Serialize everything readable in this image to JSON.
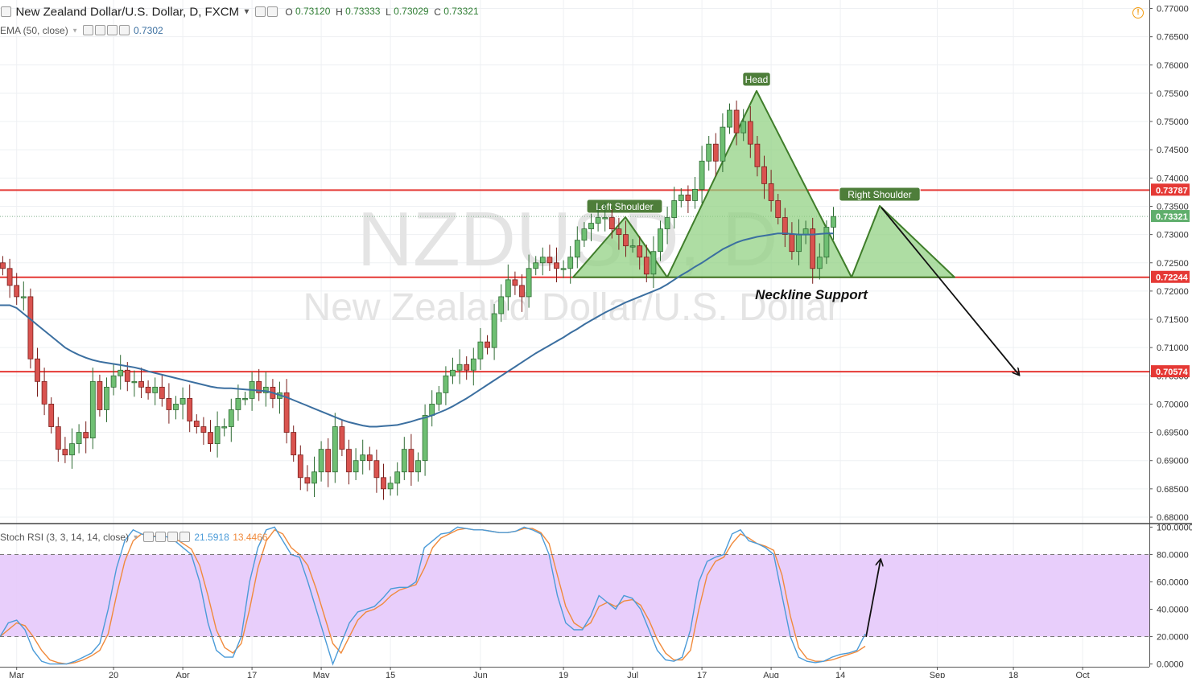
{
  "header": {
    "title": "New Zealand Dollar/U.S. Dollar, D, FXCM",
    "ohlc": [
      {
        "k": "O",
        "v": "0.73120"
      },
      {
        "k": "H",
        "v": "0.73333"
      },
      {
        "k": "L",
        "v": "0.73029"
      },
      {
        "k": "C",
        "v": "0.73321"
      }
    ],
    "ema_label": "EMA (50, close)",
    "ema_value": "0.7302",
    "stoch_label": "Stoch RSI (3, 3, 14, 14, close)",
    "stoch_k": "21.5918",
    "stoch_d": "13.4466"
  },
  "watermark": {
    "symbol": "NZDUSD, D",
    "name": "New Zealand Dollar/U.S. Dollar"
  },
  "colors": {
    "up": "#6fbf73",
    "down": "#d9534f",
    "ema": "#3b6fa0",
    "level": "#e53935",
    "pattern_fill": "#8fd07f",
    "pattern_stroke": "#3f7d2a",
    "stoch_k": "#4b9bd8",
    "stoch_d": "#f08a3c",
    "rsi_band": "#e6c9fb"
  },
  "chart_data": {
    "type": "candlestick",
    "price_axis": {
      "ticks": [
        "0.77000",
        "0.76500",
        "0.76000",
        "0.75500",
        "0.75000",
        "0.74500",
        "0.74000",
        "0.73500",
        "0.73000",
        "0.72500",
        "0.72000",
        "0.71500",
        "0.71000",
        "0.70500",
        "0.70000",
        "0.69500",
        "0.69000",
        "0.68500",
        "0.68000"
      ],
      "ylim": [
        0.679,
        0.7715
      ]
    },
    "rsi_axis": {
      "ticks": [
        "100.0000",
        "80.0000",
        "60.0000",
        "40.0000",
        "20.0000",
        "0.0000"
      ],
      "ylim": [
        -2,
        102
      ],
      "band": [
        20,
        80
      ]
    },
    "time_axis": [
      {
        "i": 2,
        "label": "Mar"
      },
      {
        "i": 16,
        "label": "20"
      },
      {
        "i": 26,
        "label": "Apr"
      },
      {
        "i": 36,
        "label": "17"
      },
      {
        "i": 46,
        "label": "May"
      },
      {
        "i": 56,
        "label": "15"
      },
      {
        "i": 69,
        "label": "Jun"
      },
      {
        "i": 81,
        "label": "19"
      },
      {
        "i": 91,
        "label": "Jul"
      },
      {
        "i": 101,
        "label": "17"
      },
      {
        "i": 111,
        "label": "Aug"
      },
      {
        "i": 121,
        "label": "14"
      },
      {
        "i": 135,
        "label": "Sep"
      },
      {
        "i": 146,
        "label": "18"
      },
      {
        "i": 156,
        "label": "Oct"
      }
    ],
    "levels": [
      {
        "value": 0.73787,
        "label": "0.73787"
      },
      {
        "value": 0.72244,
        "label": "0.72244"
      },
      {
        "value": 0.70574,
        "label": "0.70574"
      }
    ],
    "last_price": {
      "value": 0.73321,
      "label": "0.73321"
    },
    "pattern_labels": {
      "left": "Left Shoulder",
      "head": "Head",
      "right": "Right Shoulder",
      "neckline": "Neckline Support"
    },
    "closes": [
      0.724,
      0.721,
      0.719,
      0.719,
      0.708,
      0.704,
      0.7,
      0.696,
      0.692,
      0.691,
      0.693,
      0.695,
      0.694,
      0.704,
      0.699,
      0.703,
      0.705,
      0.706,
      0.704,
      0.704,
      0.703,
      0.702,
      0.703,
      0.701,
      0.699,
      0.7,
      0.701,
      0.697,
      0.696,
      0.695,
      0.693,
      0.696,
      0.696,
      0.699,
      0.701,
      0.701,
      0.704,
      0.702,
      0.703,
      0.701,
      0.702,
      0.695,
      0.691,
      0.687,
      0.686,
      0.688,
      0.692,
      0.688,
      0.696,
      0.692,
      0.688,
      0.69,
      0.691,
      0.69,
      0.687,
      0.685,
      0.686,
      0.688,
      0.692,
      0.688,
      0.69,
      0.698,
      0.7,
      0.702,
      0.705,
      0.706,
      0.707,
      0.706,
      0.708,
      0.711,
      0.71,
      0.716,
      0.719,
      0.722,
      0.721,
      0.719,
      0.724,
      0.725,
      0.726,
      0.725,
      0.724,
      0.724,
      0.726,
      0.729,
      0.731,
      0.732,
      0.733,
      0.733,
      0.731,
      0.73,
      0.728,
      0.728,
      0.726,
      0.723,
      0.727,
      0.731,
      0.733,
      0.736,
      0.737,
      0.736,
      0.738,
      0.743,
      0.746,
      0.743,
      0.749,
      0.752,
      0.748,
      0.75,
      0.746,
      0.742,
      0.739,
      0.736,
      0.733,
      0.73,
      0.727,
      0.73,
      0.731,
      0.724,
      0.726,
      0.7313,
      0.7332
    ],
    "ema": [
      0.7175,
      0.7175,
      0.717,
      0.716,
      0.715,
      0.714,
      0.713,
      0.712,
      0.711,
      0.71,
      0.7093,
      0.7087,
      0.7082,
      0.7078,
      0.7075,
      0.7073,
      0.7071,
      0.7069,
      0.7067,
      0.7065,
      0.7062,
      0.7058,
      0.7055,
      0.7052,
      0.7049,
      0.7046,
      0.7043,
      0.704,
      0.7037,
      0.7034,
      0.7031,
      0.7029,
      0.7028,
      0.7028,
      0.7027,
      0.7026,
      0.7025,
      0.7024,
      0.7023,
      0.702,
      0.7016,
      0.7012,
      0.7007,
      0.7002,
      0.6997,
      0.6992,
      0.6987,
      0.6982,
      0.6977,
      0.6972,
      0.6968,
      0.6965,
      0.6962,
      0.696,
      0.696,
      0.6961,
      0.6962,
      0.6963,
      0.6966,
      0.6969,
      0.6973,
      0.6976,
      0.698,
      0.6985,
      0.699,
      0.6996,
      0.7003,
      0.701,
      0.7018,
      0.7026,
      0.7034,
      0.7042,
      0.705,
      0.7058,
      0.7066,
      0.7074,
      0.7082,
      0.709,
      0.7097,
      0.7104,
      0.7111,
      0.7118,
      0.7126,
      0.7133,
      0.7141,
      0.7148,
      0.7155,
      0.7162,
      0.7168,
      0.7174,
      0.718,
      0.7185,
      0.719,
      0.7195,
      0.72,
      0.7205,
      0.7212,
      0.722,
      0.7228,
      0.7235,
      0.7243,
      0.725,
      0.7258,
      0.7266,
      0.7274,
      0.728,
      0.7286,
      0.729,
      0.7293,
      0.7296,
      0.7298,
      0.73,
      0.7302,
      0.7302,
      0.7301,
      0.73,
      0.73,
      0.73,
      0.7301,
      0.7302,
      0.7302
    ],
    "stoch_k": [
      20,
      30,
      32,
      25,
      10,
      2,
      0,
      0,
      0,
      2,
      5,
      8,
      15,
      40,
      70,
      90,
      98,
      95,
      93,
      93,
      93,
      90,
      85,
      80,
      60,
      30,
      10,
      5,
      5,
      20,
      60,
      85,
      98,
      100,
      90,
      80,
      78,
      60,
      40,
      20,
      0,
      15,
      30,
      38,
      40,
      42,
      48,
      55,
      56,
      56,
      60,
      85,
      90,
      95,
      96,
      100,
      99,
      98,
      98,
      97,
      96,
      96,
      97,
      100,
      98,
      95,
      80,
      50,
      30,
      25,
      25,
      35,
      50,
      45,
      40,
      50,
      48,
      40,
      25,
      10,
      3,
      2,
      5,
      25,
      60,
      75,
      78,
      80,
      95,
      98,
      90,
      88,
      85,
      80,
      50,
      20,
      5,
      2,
      1,
      2,
      5,
      7,
      8,
      10,
      22
    ],
    "stoch_d": [
      20,
      25,
      30,
      28,
      20,
      10,
      3,
      1,
      0,
      1,
      3,
      6,
      10,
      22,
      50,
      75,
      90,
      95,
      94,
      93,
      93,
      92,
      88,
      84,
      72,
      50,
      25,
      12,
      8,
      15,
      40,
      70,
      90,
      98,
      95,
      85,
      80,
      72,
      55,
      35,
      15,
      8,
      20,
      32,
      38,
      40,
      44,
      50,
      54,
      56,
      58,
      70,
      85,
      92,
      95,
      98,
      99,
      98,
      98,
      97,
      96,
      96,
      97,
      99,
      99,
      96,
      88,
      65,
      42,
      30,
      26,
      30,
      42,
      45,
      42,
      46,
      47,
      43,
      32,
      18,
      8,
      3,
      3,
      10,
      40,
      65,
      75,
      78,
      88,
      95,
      92,
      88,
      86,
      83,
      65,
      35,
      12,
      4,
      2,
      2,
      3,
      5,
      7,
      9,
      13
    ]
  }
}
